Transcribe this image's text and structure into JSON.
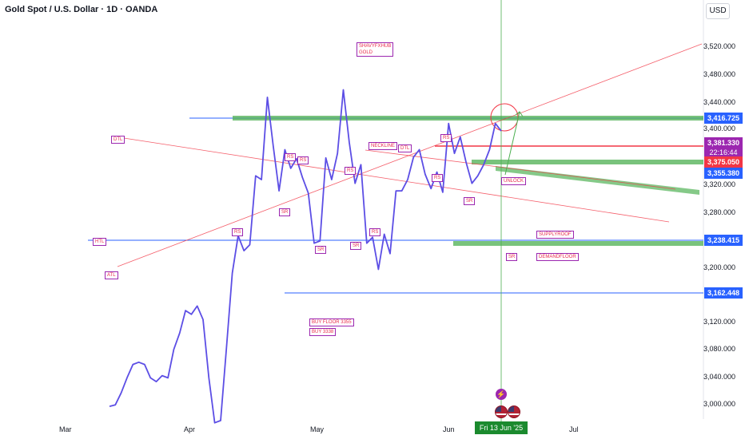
{
  "header": {
    "title": "Gold Spot / U.S. Dollar · 1D · OANDA",
    "currency": "USD"
  },
  "price_axis": [
    "3,520.000",
    "3,480.000",
    "3,440.000",
    "3,400.000",
    "3,320.000",
    "3,280.000",
    "3,200.000",
    "3,120.000",
    "3,080.000",
    "3,040.000",
    "3,000.000"
  ],
  "price_tags": [
    {
      "text": "3,416.725",
      "color": "#2962ff"
    },
    {
      "text": "3,381.330",
      "color": "#9c27b0"
    },
    {
      "text": "22:16:44",
      "color": "#9c27b0"
    },
    {
      "text": "3,375.050",
      "color": "#f23645"
    },
    {
      "text": "3,355.380",
      "color": "#2962ff"
    },
    {
      "text": "3,238.415",
      "color": "#2962ff"
    },
    {
      "text": "3,162.448",
      "color": "#2962ff"
    }
  ],
  "time_axis": [
    "Mar",
    "Apr",
    "May",
    "Jun",
    "Jul"
  ],
  "crosshair_date": "Fri 13 Jun '25",
  "annotations": [
    {
      "id": "shavyfxhub",
      "text": "SHAVYFXHUB\nGOLD"
    },
    {
      "id": "dtl1",
      "text": "DTL"
    },
    {
      "id": "htl",
      "text": "HTL"
    },
    {
      "id": "atl",
      "text": "ATL"
    },
    {
      "id": "neckline",
      "text": "NECKLINE"
    },
    {
      "id": "dtl2",
      "text": "DTL"
    },
    {
      "id": "unlock",
      "text": "UNLOCK"
    },
    {
      "id": "supplyroof",
      "text": "SUPPLYROOF"
    },
    {
      "id": "demandfloor",
      "text": "DEMANDFLOOR"
    },
    {
      "id": "buyfloor",
      "text": "BUY FLOOR 3355"
    },
    {
      "id": "buy3338",
      "text": "BUY 3338"
    },
    {
      "id": "rs1",
      "text": "RS"
    },
    {
      "id": "rs2",
      "text": "RS"
    },
    {
      "id": "rs3",
      "text": "RS"
    },
    {
      "id": "rs4",
      "text": "RS"
    },
    {
      "id": "rs5",
      "text": "RS"
    },
    {
      "id": "rs6",
      "text": "RS"
    },
    {
      "id": "rs7",
      "text": "RS"
    },
    {
      "id": "sr1",
      "text": "SR"
    },
    {
      "id": "sr2",
      "text": "SR"
    },
    {
      "id": "sr3",
      "text": "SR"
    },
    {
      "id": "sr4",
      "text": "SR"
    },
    {
      "id": "sr5",
      "text": "SR"
    }
  ],
  "chart_data": {
    "type": "line",
    "series": [
      {
        "values": [
          3002,
          3004,
          3020,
          3040,
          3058,
          3061,
          3058,
          3040,
          3035,
          3043,
          3040,
          3078,
          3100,
          3130,
          3125,
          3136,
          3118,
          3040,
          2980,
          2983,
          3080,
          3180,
          3230,
          3210,
          3218,
          3310,
          3305,
          3415,
          3350,
          3290,
          3345,
          3320,
          3333,
          3308,
          3287,
          3220,
          3223,
          3334,
          3305,
          3340,
          3425,
          3355,
          3300,
          3325,
          3220,
          3228,
          3185,
          3232,
          3206,
          3290,
          3290,
          3305,
          3335,
          3345,
          3312,
          3293,
          3315,
          3288,
          3380,
          3340,
          3362,
          3328,
          3300,
          3310,
          3325,
          3345,
          3380,
          3370
        ]
      }
    ],
    "ylim": [
      2985,
      3545
    ],
    "line_color": "#5c4ee5"
  },
  "colors": {
    "accent": "#2962ff",
    "drawing_red": "#f23645",
    "zone_green": "#4caf50",
    "bars": "#9c27b0"
  }
}
